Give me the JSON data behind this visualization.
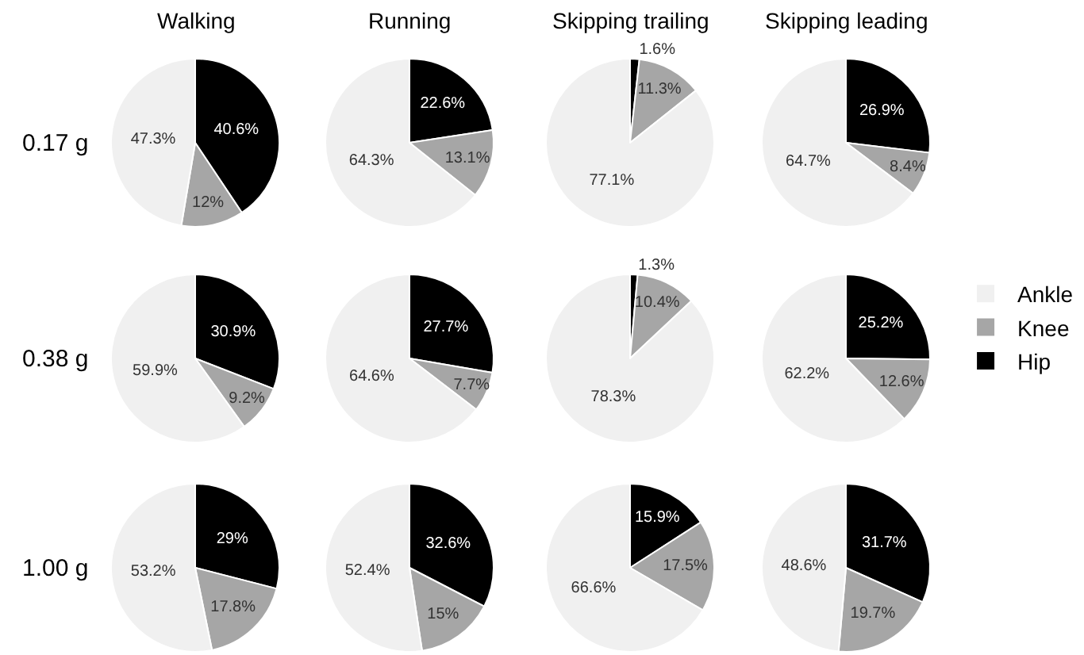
{
  "chart_data": [
    {
      "type": "pie",
      "title": "Walking",
      "ylabel": "0.17 g",
      "categories": [
        "Hip",
        "Knee",
        "Ankle"
      ],
      "values": [
        40.6,
        12,
        47.3
      ],
      "value_labels": [
        "40.6%",
        "12%",
        "47.3%"
      ],
      "colors": [
        "#000000",
        "#a6a6a6",
        "#f0f0f0"
      ],
      "legend": "right"
    },
    {
      "type": "pie",
      "title": "Running",
      "categories": [
        null,
        null,
        null
      ],
      "values": [
        22.6,
        13.1,
        64.3
      ],
      "value_labels": [
        "22.6%",
        "13.1%",
        "64.3%"
      ],
      "colors": [
        "#000000",
        "#a6a6a6",
        "#f0f0f0"
      ]
    },
    {
      "type": "pie",
      "title": "Skipping trailing",
      "categories": [
        null,
        null,
        null
      ],
      "values": [
        1.6,
        11.3,
        77.1
      ],
      "value_labels": [
        "1.6%",
        "11.3%",
        "77.1%"
      ],
      "colors": [
        "#000000",
        "#a6a6a6",
        "#f0f0f0"
      ]
    },
    {
      "type": "pie",
      "title": "Skipping leading",
      "categories": [
        null,
        null,
        null
      ],
      "values": [
        26.9,
        8.4,
        64.7
      ],
      "value_labels": [
        "26.9%",
        "8.4%",
        "64.7%"
      ],
      "colors": [
        "#000000",
        "#a6a6a6",
        "#f0f0f0"
      ]
    },
    {
      "type": "pie",
      "ylabel": "0.38 g",
      "categories": [
        null,
        null,
        null
      ],
      "values": [
        30.9,
        9.2,
        59.9
      ],
      "value_labels": [
        "30.9%",
        "9.2%",
        "59.9%"
      ],
      "colors": [
        "#000000",
        "#a6a6a6",
        "#f0f0f0"
      ]
    },
    {
      "type": "pie",
      "categories": [
        null,
        null,
        null
      ],
      "values": [
        27.7,
        7.7,
        64.6
      ],
      "value_labels": [
        "27.7%",
        "7.7%",
        "64.6%"
      ],
      "colors": [
        "#000000",
        "#a6a6a6",
        "#f0f0f0"
      ]
    },
    {
      "type": "pie",
      "categories": [
        null,
        null,
        null
      ],
      "values": [
        1.3,
        10.4,
        78.3
      ],
      "value_labels": [
        "1.3%",
        "10.4%",
        "78.3%"
      ],
      "colors": [
        "#000000",
        "#a6a6a6",
        "#f0f0f0"
      ]
    },
    {
      "type": "pie",
      "categories": [
        null,
        null,
        null
      ],
      "values": [
        25.2,
        12.6,
        62.2
      ],
      "value_labels": [
        "25.2%",
        "12.6%",
        "62.2%"
      ],
      "colors": [
        "#000000",
        "#a6a6a6",
        "#f0f0f0"
      ]
    },
    {
      "type": "pie",
      "ylabel": "1.00 g",
      "categories": [
        null,
        null,
        null
      ],
      "values": [
        29,
        17.8,
        53.2
      ],
      "value_labels": [
        "29%",
        "17.8%",
        "53.2%"
      ],
      "colors": [
        "#000000",
        "#a6a6a6",
        "#f0f0f0"
      ]
    },
    {
      "type": "pie",
      "categories": [
        null,
        null,
        null
      ],
      "values": [
        32.6,
        15,
        52.4
      ],
      "value_labels": [
        "32.6%",
        "15%",
        "52.4%"
      ],
      "colors": [
        "#000000",
        "#a6a6a6",
        "#f0f0f0"
      ]
    },
    {
      "type": "pie",
      "categories": [
        null,
        null,
        null
      ],
      "values": [
        15.9,
        17.5,
        66.6
      ],
      "value_labels": [
        "15.9%",
        "17.5%",
        "66.6%"
      ],
      "colors": [
        "#000000",
        "#a6a6a6",
        "#f0f0f0"
      ]
    },
    {
      "type": "pie",
      "categories": [
        null,
        null,
        null
      ],
      "values": [
        31.7,
        19.7,
        48.6
      ],
      "value_labels": [
        "31.7%",
        "19.7%",
        "48.6%"
      ],
      "colors": [
        "#000000",
        "#a6a6a6",
        "#f0f0f0"
      ]
    }
  ]
}
